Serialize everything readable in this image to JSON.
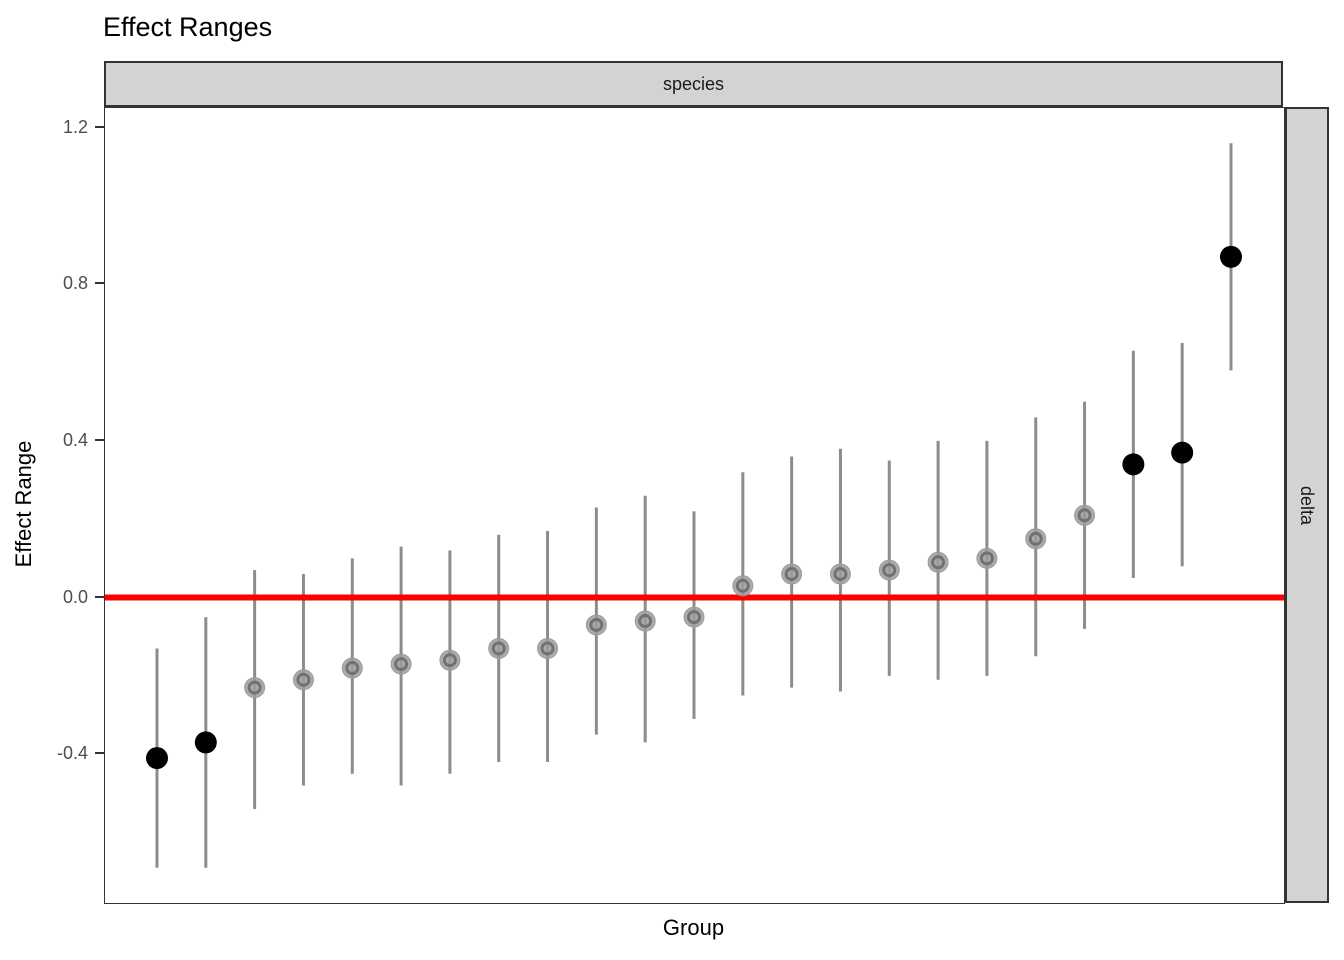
{
  "title": "Effect Ranges",
  "chart_data": {
    "type": "scatter",
    "title": "Effect Ranges",
    "facet_top_label": "species",
    "facet_right_label": "delta",
    "xlabel": "Group",
    "ylabel": "Effect Range",
    "ylim": [
      -0.78,
      1.25
    ],
    "yticks": [
      {
        "value": -0.4,
        "label": "-0.4"
      },
      {
        "value": 0.0,
        "label": "0.0"
      },
      {
        "value": 0.4,
        "label": "0.4"
      },
      {
        "value": 0.8,
        "label": "0.8"
      },
      {
        "value": 1.2,
        "label": "1.2"
      }
    ],
    "x_tick_labels_shown": false,
    "grid": "off",
    "legend": "none",
    "reference_line": {
      "y": 0.0,
      "color": "#FF0000"
    },
    "errorbar_color": "#8C8C8C",
    "point_styles": {
      "significant": {
        "fill": "#000000",
        "shape": "solid circle"
      },
      "not_significant": {
        "fill": "#9C9C9C",
        "ring": "#6B6B6B",
        "shape": "gray ring circle"
      }
    },
    "points": [
      {
        "estimate": -0.41,
        "lower": -0.69,
        "upper": -0.13,
        "significant": true
      },
      {
        "estimate": -0.37,
        "lower": -0.69,
        "upper": -0.05,
        "significant": true
      },
      {
        "estimate": -0.23,
        "lower": -0.54,
        "upper": 0.07,
        "significant": false
      },
      {
        "estimate": -0.21,
        "lower": -0.48,
        "upper": 0.06,
        "significant": false
      },
      {
        "estimate": -0.18,
        "lower": -0.45,
        "upper": 0.1,
        "significant": false
      },
      {
        "estimate": -0.17,
        "lower": -0.48,
        "upper": 0.13,
        "significant": false
      },
      {
        "estimate": -0.16,
        "lower": -0.45,
        "upper": 0.12,
        "significant": false
      },
      {
        "estimate": -0.13,
        "lower": -0.42,
        "upper": 0.16,
        "significant": false
      },
      {
        "estimate": -0.13,
        "lower": -0.42,
        "upper": 0.17,
        "significant": false
      },
      {
        "estimate": -0.07,
        "lower": -0.35,
        "upper": 0.23,
        "significant": false
      },
      {
        "estimate": -0.06,
        "lower": -0.37,
        "upper": 0.26,
        "significant": false
      },
      {
        "estimate": -0.05,
        "lower": -0.31,
        "upper": 0.22,
        "significant": false
      },
      {
        "estimate": 0.03,
        "lower": -0.25,
        "upper": 0.32,
        "significant": false
      },
      {
        "estimate": 0.06,
        "lower": -0.23,
        "upper": 0.36,
        "significant": false
      },
      {
        "estimate": 0.06,
        "lower": -0.24,
        "upper": 0.38,
        "significant": false
      },
      {
        "estimate": 0.07,
        "lower": -0.2,
        "upper": 0.35,
        "significant": false
      },
      {
        "estimate": 0.09,
        "lower": -0.21,
        "upper": 0.4,
        "significant": false
      },
      {
        "estimate": 0.1,
        "lower": -0.2,
        "upper": 0.4,
        "significant": false
      },
      {
        "estimate": 0.15,
        "lower": -0.15,
        "upper": 0.46,
        "significant": false
      },
      {
        "estimate": 0.21,
        "lower": -0.08,
        "upper": 0.5,
        "significant": false
      },
      {
        "estimate": 0.34,
        "lower": 0.05,
        "upper": 0.63,
        "significant": true
      },
      {
        "estimate": 0.37,
        "lower": 0.08,
        "upper": 0.65,
        "significant": true
      },
      {
        "estimate": 0.87,
        "lower": 0.58,
        "upper": 1.16,
        "significant": true
      }
    ]
  },
  "colors": {
    "strip_fill": "#D3D3D3",
    "strip_border": "#333333",
    "panel_border": "#333333",
    "tick_text": "#4D4D4D",
    "reference_line": "#FF0000"
  }
}
